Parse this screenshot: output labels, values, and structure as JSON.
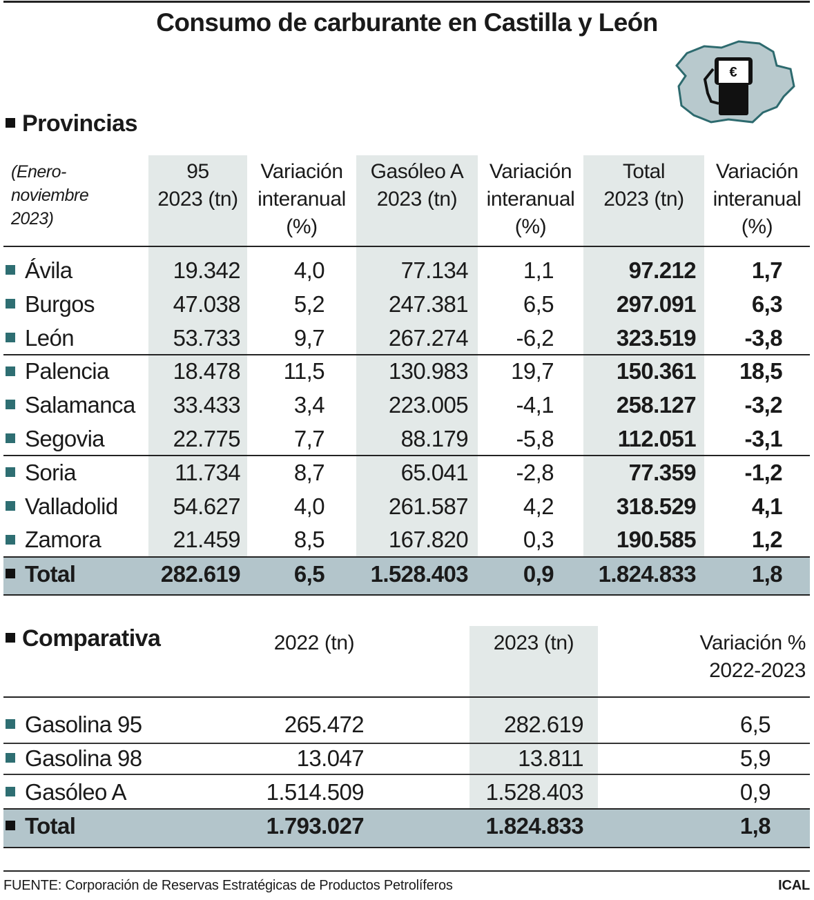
{
  "title": "Consumo de carburante en Castilla y León",
  "colors": {
    "bullet": "#2e6e72",
    "shade": "#e3e9e8",
    "total_row": "#b3c5cb",
    "map_fill": "#b8c9cd"
  },
  "icon": "fuel-pump-map-icon",
  "icon_symbol": "€",
  "provincias": {
    "heading": "Provincias",
    "note": [
      "(Enero-",
      "noviembre",
      "2023)"
    ],
    "headers": [
      [
        "95",
        "2023 (tn)"
      ],
      [
        "Variación",
        "interanual",
        "(%)"
      ],
      [
        "Gasóleo A",
        "2023 (tn)"
      ],
      [
        "Variación",
        "interanual",
        "(%)"
      ],
      [
        "Total",
        "2023 (tn)"
      ],
      [
        "Variación",
        "interanual",
        "(%)"
      ]
    ],
    "rows": [
      [
        "Ávila",
        "19.342",
        "4,0",
        "77.134",
        "1,1",
        "97.212",
        "1,7"
      ],
      [
        "Burgos",
        "47.038",
        "5,2",
        "247.381",
        "6,5",
        "297.091",
        "6,3"
      ],
      [
        "León",
        "53.733",
        "9,7",
        "267.274",
        "-6,2",
        "323.519",
        "-3,8"
      ],
      [
        "Palencia",
        "18.478",
        "11,5",
        "130.983",
        "19,7",
        "150.361",
        "18,5"
      ],
      [
        "Salamanca",
        "33.433",
        "3,4",
        "223.005",
        "-4,1",
        "258.127",
        "-3,2"
      ],
      [
        "Segovia",
        "22.775",
        "7,7",
        "88.179",
        "-5,8",
        "112.051",
        "-3,1"
      ],
      [
        "Soria",
        "11.734",
        "8,7",
        "65.041",
        "-2,8",
        "77.359",
        "-1,2"
      ],
      [
        "Valladolid",
        "54.627",
        "4,0",
        "261.587",
        "4,2",
        "318.529",
        "4,1"
      ],
      [
        "Zamora",
        "21.459",
        "8,5",
        "167.820",
        "0,3",
        "190.585",
        "1,2"
      ]
    ],
    "total": [
      "Total",
      "282.619",
      "6,5",
      "1.528.403",
      "0,9",
      "1.824.833",
      "1,8"
    ]
  },
  "comparativa": {
    "heading": "Comparativa",
    "headers": [
      [
        "2022 (tn)"
      ],
      [
        "2023 (tn)"
      ],
      [
        "Variación %",
        "2022-2023"
      ]
    ],
    "rows": [
      [
        "Gasolina 95",
        "265.472",
        "282.619",
        "6,5"
      ],
      [
        "Gasolina 98",
        "13.047",
        "13.811",
        "5,9"
      ],
      [
        "Gasóleo A",
        "1.514.509",
        "1.528.403",
        "0,9"
      ]
    ],
    "total": [
      "Total",
      "1.793.027",
      "1.824.833",
      "1,8"
    ]
  },
  "footer": {
    "source": "FUENTE: Corporación de Reservas Estratégicas de Productos Petrolíferos",
    "brand": "ICAL"
  }
}
